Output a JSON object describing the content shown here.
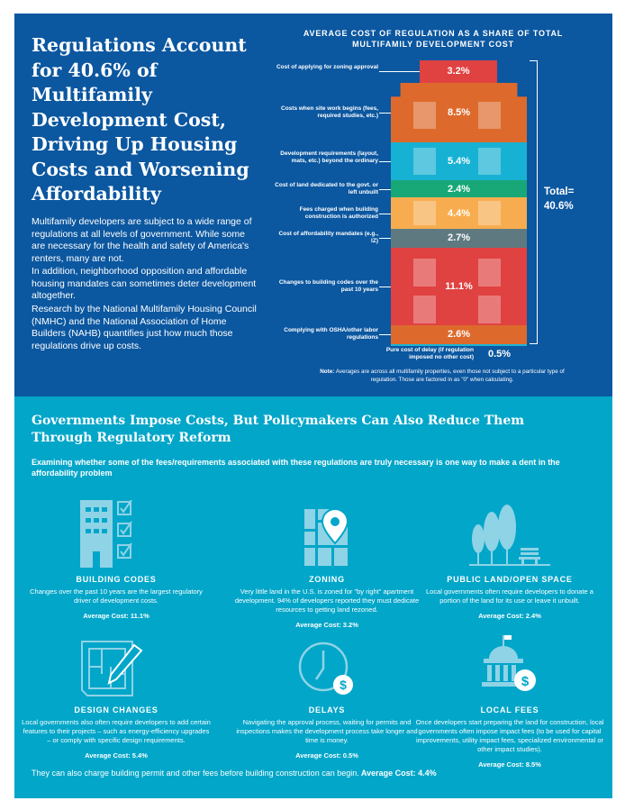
{
  "header": {
    "title": "Regulations Account for 40.6% of Multifamily Development Cost, Driving Up Housing Costs and Worsening Affordability",
    "paragraphs": [
      "Multifamily developers are subject to a wide range of regulations at all levels of government. While some are necessary for the health and safety of America's renters, many are not.",
      "In addition, neighborhood opposition and affordable housing mandates can sometimes deter development altogether.",
      "Research by the National Multifamily Housing Council (NMHC) and the National Association of Home Builders (NAHB) quantifies just how much those regulations drive up costs."
    ]
  },
  "chart_data": {
    "type": "bar",
    "stacked": true,
    "title": "AVERAGE COST OF REGULATION AS A SHARE OF TOTAL MULTIFAMILY DEVELOPMENT COST",
    "categories": [
      "Cost of applying for zoning approval",
      "Costs when site work begins (fees, required studies, etc.)",
      "Development requirements (layout, mats, etc.) beyond the ordinary",
      "Cost of land dedicated to the govt. or left unbuilt",
      "Fees charged when building construction is authorized",
      "Cost of affordability mandates (e.g., IZ)",
      "Changes to building codes over the past 10 years",
      "Complying with OSHA/other labor regulations",
      "Pure cost of delay (if regulation imposed no other cost)"
    ],
    "values": [
      3.2,
      8.5,
      5.4,
      2.4,
      4.4,
      2.7,
      11.1,
      2.6,
      0.5
    ],
    "data_labels": [
      "3.2%",
      "8.5%",
      "5.4%",
      "2.4%",
      "4.4%",
      "2.7%",
      "11.1%",
      "2.6%",
      "0.5%"
    ],
    "colors": [
      "#e04141",
      "#dd6a2c",
      "#17b1d3",
      "#18a877",
      "#f7ad4f",
      "#5e7a80",
      "#e04141",
      "#dd6a2c",
      "#1fb3d4"
    ],
    "total_label": "Total=",
    "total_value": "40.6%",
    "note_bold": "Note:",
    "note": " Averages are across all multifamily properties, even those not subject to a particular type of regulation. Those are factored in as \"0\" when calculating."
  },
  "reform": {
    "heading": "Governments Impose Costs, But Policymakers Can Also Reduce Them Through Regulatory Reform",
    "subheading": "Examining whether some of the fees/requirements associated with these regulations are truly necessary is one way to make a dent in the affordability problem",
    "cards": [
      {
        "icon": "building-checklist-icon",
        "title": "BUILDING CODES",
        "text": "Changes over the past 10 years are the largest regulatory driver of development costs.",
        "avg": "Average Cost: 11.1%"
      },
      {
        "icon": "map-pin-icon",
        "title": "ZONING",
        "text": "Very little land in the U.S. is zoned for \"by right\" apartment development. 94% of developers reported they must dedicate resources to getting land rezoned.",
        "avg": "Average Cost: 3.2%"
      },
      {
        "icon": "trees-bench-icon",
        "title": "PUBLIC LAND/OPEN SPACE",
        "text": "Local governments often require developers to donate a portion of the land for its use or leave it unbuilt.",
        "avg": "Average Cost: 2.4%"
      },
      {
        "icon": "blueprint-pencil-icon",
        "title": "DESIGN CHANGES",
        "text": "Local governments also often require developers to add certain features to their projects – such as energy-efficiency upgrades – or comply with specific design requirements.",
        "avg": "Average Cost: 5.4%"
      },
      {
        "icon": "clock-dollar-icon",
        "title": "DELAYS",
        "text": "Navigating the approval process, waiting for permits and inspections makes the development process take longer and time is money.",
        "avg": "Average Cost: 0.5%"
      },
      {
        "icon": "government-dollar-icon",
        "title": "LOCAL FEES",
        "text": "Once developers start preparing the land for construction, local governments often impose impact fees (to be used for capital improvements, utility impact fees, specialized environmental or other impact studies).",
        "avg": "Average Cost: 8.5%"
      }
    ],
    "footer": "They can also charge building permit and other fees before building construction can begin.",
    "footer_bold": " Average Cost: 4.4%"
  }
}
